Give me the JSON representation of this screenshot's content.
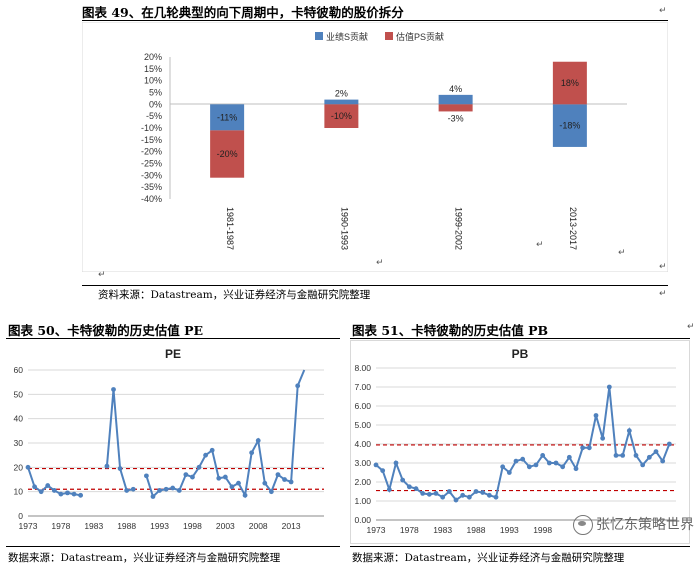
{
  "fig49": {
    "title": "图表 49、在几轮典型的向下周期中，卡特彼勒的股价拆分",
    "source": "资料来源：Datastream，兴业证券经济与金融研究院整理",
    "chart_data": {
      "type": "bar",
      "stacked": true,
      "categories": [
        "1981-1987",
        "1990-1993",
        "1999-2002",
        "2013-2017"
      ],
      "series": [
        {
          "name": "业绩S贡献",
          "color": "#4f81bd",
          "values": [
            -11,
            2,
            4,
            -18
          ]
        },
        {
          "name": "估值PS贡献",
          "color": "#c0504d",
          "values": [
            -20,
            -10,
            -3,
            18
          ]
        }
      ],
      "yticks": [
        "20%",
        "15%",
        "10%",
        "5%",
        "0%",
        "-5%",
        "-10%",
        "-15%",
        "-20%",
        "-25%",
        "-30%",
        "-35%",
        "-40%"
      ],
      "ylim": [
        -40,
        20
      ],
      "legend": "top",
      "grid": false
    }
  },
  "fig50": {
    "title": "图表 50、卡特彼勒的历史估值 PE",
    "source": "数据来源：Datastream，兴业证券经济与金融研究院整理",
    "chart_data": {
      "type": "line",
      "title": "PE",
      "color": "#4f81bd",
      "xticks": [
        "1973",
        "1978",
        "1983",
        "1988",
        "1993",
        "1998",
        "2003",
        "2008",
        "2013"
      ],
      "yticks": [
        "0",
        "10",
        "20",
        "30",
        "40",
        "50",
        "60"
      ],
      "ylim": [
        0,
        60
      ],
      "xlim": [
        1973,
        2018
      ],
      "segments": [
        {
          "x": [
            1973,
            1974,
            1975,
            1976,
            1977,
            1978,
            1979,
            1980,
            1981
          ],
          "y": [
            20,
            12,
            10,
            12.5,
            10.5,
            9,
            9.5,
            9,
            8.5
          ]
        },
        {
          "x": [
            1985,
            1986,
            1987,
            1988,
            1989
          ],
          "y": [
            20.5,
            52,
            19.5,
            10.5,
            11
          ]
        },
        {
          "x": [
            1991,
            1992,
            1993,
            1994,
            1995,
            1996,
            1997,
            1998,
            1999,
            2000,
            2001,
            2002,
            2003,
            2004,
            2005,
            2006,
            2007,
            2008,
            2009,
            2010,
            2011,
            2012,
            2013,
            2014,
            2015,
            2016,
            2017
          ],
          "y": [
            16.5,
            8,
            10.5,
            11,
            11.5,
            10.5,
            17,
            16,
            20,
            25,
            27,
            15.5,
            16,
            12,
            13.5,
            8.5,
            26,
            31,
            13.5,
            10,
            17,
            15,
            14,
            53.5,
            60,
            null,
            null
          ]
        }
      ],
      "reference_lines": [
        {
          "value": 19.5,
          "style": "dashed",
          "color": "#c00000"
        },
        {
          "value": 11,
          "style": "dashed",
          "color": "#c00000"
        }
      ]
    }
  },
  "fig51": {
    "title": "图表 51、卡特彼勒的历史估值 PB",
    "source": "数据来源：Datastream，兴业证券经济与金融研究院整理",
    "chart_data": {
      "type": "line",
      "title": "PB",
      "color": "#4f81bd",
      "xticks": [
        "1973",
        "1978",
        "1983",
        "1988",
        "1993",
        "1998"
      ],
      "yticks": [
        "0.00",
        "1.00",
        "2.00",
        "3.00",
        "4.00",
        "5.00",
        "6.00",
        "7.00",
        "8.00"
      ],
      "ylim": [
        0,
        8
      ],
      "xlim": [
        1973,
        2018
      ],
      "x": [
        1973,
        1974,
        1975,
        1976,
        1977,
        1978,
        1979,
        1980,
        1981,
        1982,
        1983,
        1984,
        1985,
        1986,
        1987,
        1988,
        1989,
        1990,
        1991,
        1992,
        1993,
        1994,
        1995,
        1996,
        1997,
        1998,
        1999,
        2000,
        2001,
        2002,
        2003,
        2004,
        2005,
        2006,
        2007,
        2008,
        2009,
        2010,
        2011,
        2012,
        2013,
        2014,
        2015,
        2016,
        2017
      ],
      "y": [
        2.9,
        2.6,
        1.6,
        3.0,
        2.1,
        1.75,
        1.65,
        1.4,
        1.35,
        1.4,
        1.2,
        1.5,
        1.05,
        1.3,
        1.2,
        1.5,
        1.45,
        1.3,
        1.2,
        2.8,
        2.5,
        3.1,
        3.2,
        2.8,
        2.9,
        3.4,
        3.0,
        3.0,
        2.8,
        3.3,
        2.7,
        3.8,
        3.8,
        5.5,
        4.3,
        7.0,
        3.4,
        3.4,
        4.7,
        3.4,
        2.9,
        3.3,
        3.6,
        3.1,
        4.0
      ],
      "reference_lines": [
        {
          "value": 3.95,
          "style": "dashed",
          "color": "#c00000"
        },
        {
          "value": 1.55,
          "style": "dashed",
          "color": "#c00000"
        }
      ]
    }
  },
  "watermark": {
    "text": "张忆东策略世界"
  }
}
